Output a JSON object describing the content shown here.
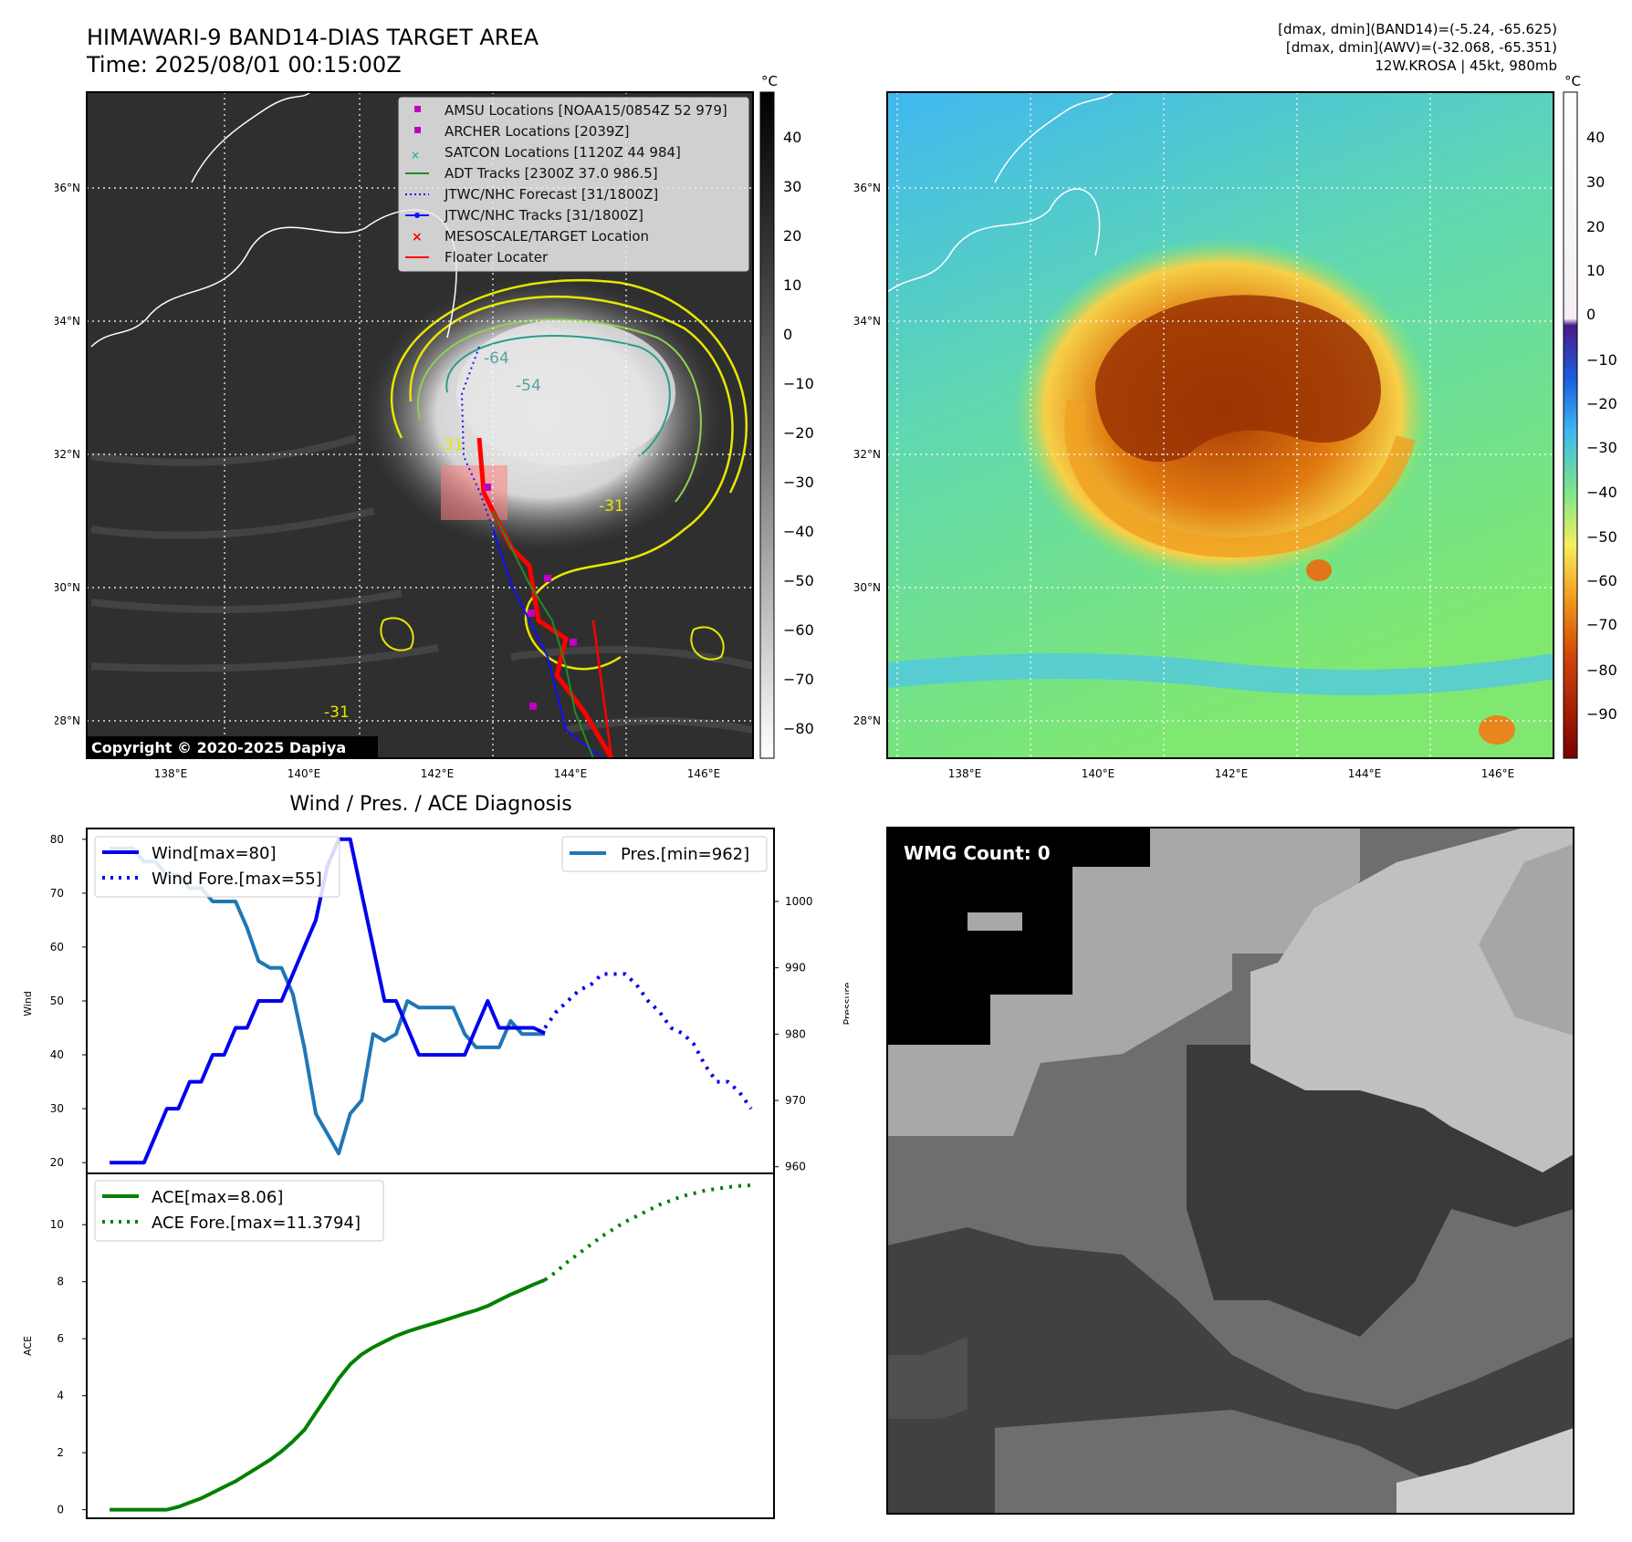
{
  "header": {
    "title": "HIMAWARI-9 BAND14-DIAS TARGET AREA",
    "time": "Time: 2025/08/01 00:15:00Z",
    "info": [
      "[dmax, dmin](BAND14)=(-5.24, -65.625)",
      "[dmax, dmin](AWV)=(-32.068, -65.351)",
      "12W.KROSA | 45kt, 980mb"
    ]
  },
  "colors": {
    "wind": "#0000ee",
    "pressure": "#1f77b4",
    "ace": "#008000",
    "floater": "#ff0000",
    "adt": "#228b22",
    "amsu": "#bf00bf",
    "satcon": "#00b0b0"
  },
  "ir_map": {
    "lat_labels": [
      "36°N",
      "34°N",
      "32°N",
      "30°N",
      "28°N"
    ],
    "lon_labels": [
      "138°E",
      "140°E",
      "142°E",
      "144°E",
      "146°E"
    ],
    "copyright": "Copyright © 2020-2025 Dapiya",
    "contour_labels": [
      "-64",
      "-54",
      "-31",
      "-31",
      "-31"
    ],
    "legend": [
      {
        "label": "AMSU Locations [NOAA15/0854Z 52 979]",
        "icon": "square-marker"
      },
      {
        "label": "ARCHER Locations [2039Z]",
        "icon": "square-marker"
      },
      {
        "label": "SATCON Locations [1120Z 44 984]",
        "icon": "x-marker"
      },
      {
        "label": "ADT Tracks [2300Z 37.0 986.5]",
        "icon": "line"
      },
      {
        "label": "JTWC/NHC Forecast [31/1800Z]",
        "icon": "dotted-line"
      },
      {
        "label": "JTWC/NHC Tracks [31/1800Z]",
        "icon": "line-dot"
      },
      {
        "label": "MESOSCALE/TARGET Location",
        "icon": "x-marker"
      },
      {
        "label": "Floater Locater",
        "icon": "line"
      }
    ],
    "colorbar": {
      "unit": "°C",
      "ticks": [
        "40",
        "30",
        "20",
        "10",
        "0",
        "−10",
        "−20",
        "−30",
        "−40",
        "−50",
        "−60",
        "−70",
        "−80"
      ]
    }
  },
  "wv_map": {
    "lat_labels": [
      "36°N",
      "34°N",
      "32°N",
      "30°N",
      "28°N"
    ],
    "lon_labels": [
      "138°E",
      "140°E",
      "142°E",
      "144°E",
      "146°E"
    ],
    "colorbar": {
      "unit": "°C",
      "ticks": [
        "40",
        "30",
        "20",
        "10",
        "0",
        "−10",
        "−20",
        "−30",
        "−40",
        "−50",
        "−60",
        "−70",
        "−80",
        "−90"
      ]
    }
  },
  "microwave": {
    "wmg_count": "WMG Count: 0"
  },
  "chart_data": [
    {
      "type": "line",
      "title": "Wind / Pres. / ACE Diagnosis",
      "ylabel": "Wind",
      "ylim": [
        18,
        82
      ],
      "x_range": [
        -2,
        58
      ],
      "series": [
        {
          "name": "Wind[max=80]",
          "style": "solid",
          "x": [
            0,
            1,
            2,
            3,
            4,
            5,
            6,
            7,
            8,
            9,
            10,
            11,
            12,
            13,
            14,
            15,
            16,
            17,
            18,
            19,
            20,
            21,
            22,
            23,
            24,
            25,
            26,
            27,
            28,
            29,
            30,
            31,
            32,
            33,
            34,
            35,
            36,
            37,
            38
          ],
          "values": [
            20,
            20,
            20,
            20,
            25,
            30,
            30,
            35,
            35,
            40,
            40,
            45,
            45,
            50,
            50,
            50,
            55,
            60,
            65,
            75,
            80,
            80,
            70,
            60,
            50,
            50,
            45,
            40,
            40,
            40,
            40,
            40,
            45,
            50,
            45,
            45,
            45,
            45,
            44
          ]
        },
        {
          "name": "Wind Fore.[max=55]",
          "style": "dotted",
          "x": [
            38,
            39,
            40,
            41,
            42,
            43,
            44,
            45,
            46,
            47,
            48,
            49,
            50,
            51,
            52,
            53,
            54,
            55,
            56
          ],
          "values": [
            45,
            48,
            50,
            52,
            53,
            55,
            55,
            55,
            53,
            50,
            48,
            45,
            44,
            42,
            38,
            35,
            35,
            33,
            30
          ]
        }
      ],
      "secondary": {
        "ylabel": "Pressure",
        "ylim": [
          959,
          1011
        ],
        "ticks": [
          "1000",
          "990",
          "980",
          "970",
          "960"
        ],
        "series": [
          {
            "name": "Pres.[min=962]",
            "style": "solid",
            "x": [
              0,
              1,
              2,
              3,
              4,
              5,
              6,
              7,
              8,
              9,
              10,
              11,
              12,
              13,
              14,
              15,
              16,
              17,
              18,
              19,
              20,
              21,
              22,
              23,
              24,
              25,
              26,
              27,
              28,
              29,
              30,
              31,
              32,
              33,
              34,
              35,
              36,
              37,
              38
            ],
            "values": [
              1008,
              1008,
              1008,
              1006,
              1006,
              1004,
              1004,
              1002,
              1002,
              1000,
              1000,
              1000,
              996,
              991,
              990,
              990,
              986,
              978,
              968,
              965,
              962,
              968,
              970,
              980,
              979,
              980,
              985,
              984,
              984,
              984,
              984,
              980,
              978,
              978,
              978,
              982,
              980,
              980,
              980
            ]
          }
        ]
      },
      "yticks": [
        "80",
        "70",
        "60",
        "50",
        "40",
        "30",
        "20"
      ]
    },
    {
      "type": "line",
      "ylabel": "ACE",
      "ylim": [
        -0.3,
        11.8
      ],
      "x_range": [
        -2,
        58
      ],
      "series": [
        {
          "name": "ACE[max=8.06]",
          "style": "solid",
          "x": [
            0,
            1,
            2,
            3,
            4,
            5,
            6,
            7,
            8,
            9,
            10,
            11,
            12,
            13,
            14,
            15,
            16,
            17,
            18,
            19,
            20,
            21,
            22,
            23,
            24,
            25,
            26,
            27,
            28,
            29,
            30,
            31,
            32,
            33,
            34,
            35,
            36,
            37,
            38
          ],
          "values": [
            0,
            0,
            0,
            0,
            0,
            0,
            0.1,
            0.25,
            0.4,
            0.6,
            0.8,
            1.0,
            1.25,
            1.5,
            1.75,
            2.05,
            2.4,
            2.8,
            3.4,
            4.0,
            4.6,
            5.1,
            5.45,
            5.7,
            5.9,
            6.1,
            6.25,
            6.38,
            6.5,
            6.62,
            6.75,
            6.88,
            7.0,
            7.15,
            7.35,
            7.55,
            7.72,
            7.9,
            8.06
          ]
        },
        {
          "name": "ACE Fore.[max=11.3794]",
          "style": "dotted",
          "x": [
            38,
            39,
            40,
            41,
            42,
            43,
            44,
            45,
            46,
            47,
            48,
            49,
            50,
            51,
            52,
            53,
            54,
            55,
            56
          ],
          "values": [
            8.06,
            8.35,
            8.7,
            9.0,
            9.3,
            9.6,
            9.85,
            10.1,
            10.3,
            10.5,
            10.7,
            10.85,
            11.0,
            11.1,
            11.2,
            11.26,
            11.32,
            11.36,
            11.38
          ]
        }
      ],
      "yticks": [
        "10",
        "8",
        "6",
        "4",
        "2",
        "0"
      ]
    }
  ]
}
